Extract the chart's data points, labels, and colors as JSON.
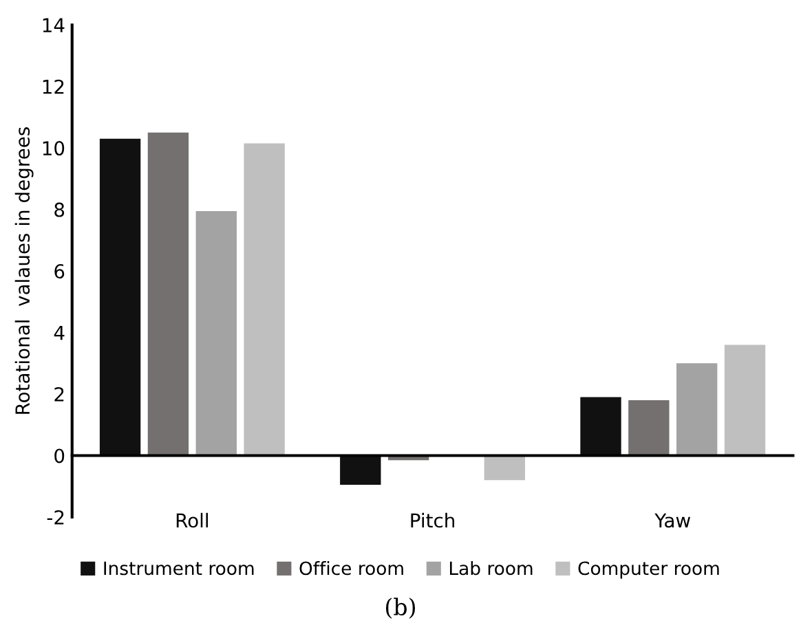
{
  "chart_data": {
    "type": "bar",
    "ylabel": "Rotational  valaues in degrees",
    "categories": [
      "Roll",
      "Pitch",
      "Yaw"
    ],
    "series": [
      {
        "name": "Instrument room",
        "color": "#111111",
        "values": [
          10.3,
          -0.95,
          1.9
        ]
      },
      {
        "name": "Office room",
        "color": "#757070",
        "values": [
          10.5,
          -0.15,
          1.8
        ]
      },
      {
        "name": "Lab room",
        "color": "#a3a3a3",
        "values": [
          7.95,
          0,
          3.0
        ]
      },
      {
        "name": "Computer room",
        "color": "#bfbfbf",
        "values": [
          10.15,
          -0.8,
          3.6
        ]
      }
    ],
    "ylim": [
      -2,
      14
    ],
    "yticks": [
      -2,
      0,
      2,
      4,
      6,
      8,
      10,
      12,
      14
    ],
    "legend": "bottom",
    "annotations": [
      "(b)"
    ]
  }
}
